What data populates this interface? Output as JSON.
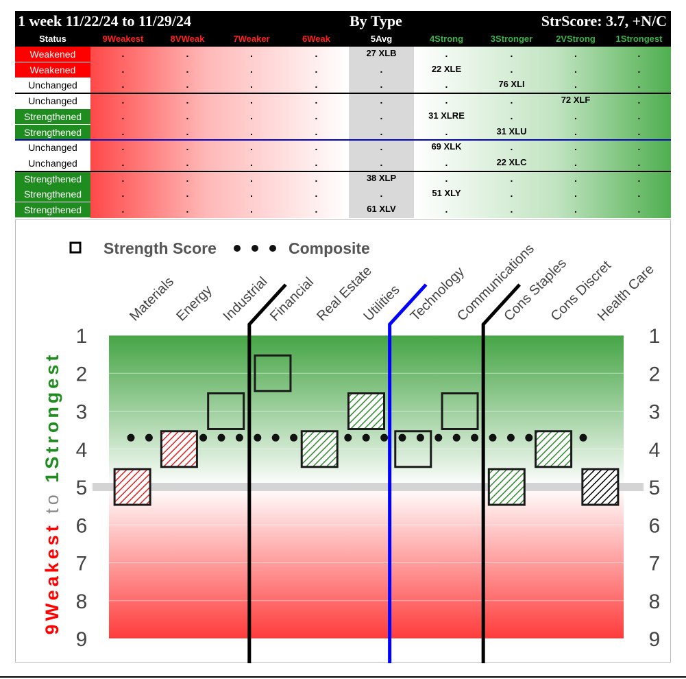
{
  "header": {
    "period": "1 week 11/22/24 to 11/29/24",
    "mode": "By Type",
    "score": "StrScore: 3.7, +N/C"
  },
  "table": {
    "status_label": "Status",
    "columns": [
      {
        "label": "9Weakest",
        "color": "#ff2020"
      },
      {
        "label": "8VWeak",
        "color": "#ff2020"
      },
      {
        "label": "7Weaker",
        "color": "#ff2020"
      },
      {
        "label": "6Weak",
        "color": "#ff2020"
      },
      {
        "label": "5Avg",
        "color": "#ffffff"
      },
      {
        "label": "4Strong",
        "color": "#3cb44b"
      },
      {
        "label": "3Stronger",
        "color": "#3cb44b"
      },
      {
        "label": "2VStrong",
        "color": "#3cb44b"
      },
      {
        "label": "1Strongest",
        "color": "#3cb44b"
      }
    ],
    "rows": [
      {
        "status": "Weakened",
        "kind": "weak",
        "ticker": "27 XLB",
        "col": 4
      },
      {
        "status": "Weakened",
        "kind": "weak",
        "ticker": "22 XLE",
        "col": 5
      },
      {
        "status": "Unchanged",
        "kind": "none",
        "ticker": "76 XLI",
        "col": 6
      },
      {
        "status": "Unchanged",
        "kind": "none",
        "ticker": "72 XLF",
        "col": 7
      },
      {
        "status": "Strengthened",
        "kind": "strong",
        "ticker": "31 XLRE",
        "col": 5
      },
      {
        "status": "Strengthened",
        "kind": "strong",
        "ticker": "31 XLU",
        "col": 6
      },
      {
        "status": "Unchanged",
        "kind": "none",
        "ticker": "69 XLK",
        "col": 5
      },
      {
        "status": "Unchanged",
        "kind": "none",
        "ticker": "22 XLC",
        "col": 6
      },
      {
        "status": "Strengthened",
        "kind": "strong",
        "ticker": "38 XLP",
        "col": 4
      },
      {
        "status": "Strengthened",
        "kind": "strong",
        "ticker": "51 XLY",
        "col": 5
      },
      {
        "status": "Strengthened",
        "kind": "strong",
        "ticker": "61 XLV",
        "col": 4
      }
    ],
    "status_colors": {
      "weak": "#ff0000",
      "strong": "#1e8c1e",
      "none": "#ffffff"
    },
    "dot": "."
  },
  "chart_data": {
    "type": "scatter",
    "legend": {
      "square_label": "Strength Score",
      "dots_label": "Composite",
      "placement": "top-left"
    },
    "categories": [
      "Materials",
      "Energy",
      "Industrial",
      "Financial",
      "Real Estate",
      "Utilities",
      "Technology",
      "Communications",
      "Cons Staples",
      "Cons Discret",
      "Health Care"
    ],
    "values": [
      5,
      4,
      3,
      2,
      4,
      3,
      4,
      3,
      5,
      4,
      5
    ],
    "fills": [
      "red-hatch",
      "red-hatch",
      "none",
      "none",
      "green-hatch",
      "green-hatch",
      "none",
      "none",
      "green-hatch",
      "green-hatch",
      "black-hatch"
    ],
    "composite": 3.7,
    "average_line": 5,
    "ylim": [
      1,
      9
    ],
    "yticks": [
      "1",
      "2",
      "3",
      "4",
      "5",
      "6",
      "7",
      "8",
      "9"
    ],
    "ylabel_strong": "1Strongest",
    "ylabel_to": "to",
    "ylabel_weak": "9Weakest",
    "dividers": [
      {
        "after": 2,
        "color": "#000000"
      },
      {
        "after": 5,
        "color": "#0000ff"
      },
      {
        "after": 7,
        "color": "#000000"
      }
    ],
    "colors": {
      "strong": "#3ca03c",
      "weak": "#ff3b3b",
      "hatch_red": "#e02020",
      "hatch_green": "#2e8b2e",
      "hatch_black": "#000000",
      "label_green": "#1e8c1e",
      "label_red": "#ff0000"
    }
  }
}
